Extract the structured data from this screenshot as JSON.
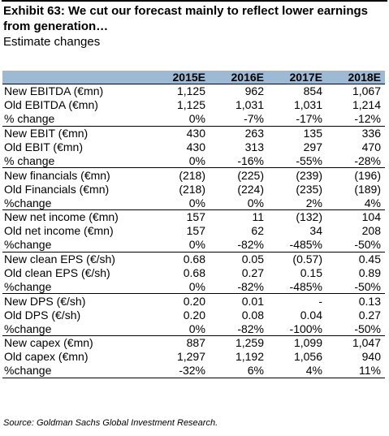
{
  "exhibit": {
    "title": "Exhibit 63: We cut our forecast mainly to reflect lower earnings from generation…",
    "subtitle": "Estimate changes"
  },
  "table": {
    "header": [
      "",
      "2015E",
      "2016E",
      "2017E",
      "2018E"
    ],
    "rows": [
      {
        "label": "New EBITDA (€mn)",
        "values": [
          "1,125",
          "962",
          "854",
          "1,067"
        ],
        "group_start": true
      },
      {
        "label": "Old EBITDA (€mn)",
        "values": [
          "1,125",
          "1,031",
          "1,031",
          "1,214"
        ]
      },
      {
        "label": "% change",
        "values": [
          "0%",
          "-7%",
          "-17%",
          "-12%"
        ]
      },
      {
        "label": "New EBIT (€mn)",
        "values": [
          "430",
          "263",
          "135",
          "336"
        ],
        "group_start": true
      },
      {
        "label": "Old EBIT (€mn)",
        "values": [
          "430",
          "313",
          "297",
          "470"
        ]
      },
      {
        "label": "% change",
        "values": [
          "0%",
          "-16%",
          "-55%",
          "-28%"
        ]
      },
      {
        "label": "New financials (€mn)",
        "values": [
          "(218)",
          "(225)",
          "(239)",
          "(196)"
        ],
        "group_start": true
      },
      {
        "label": "Old Financials (€mn)",
        "values": [
          "(218)",
          "(224)",
          "(235)",
          "(189)"
        ]
      },
      {
        "label": "%change",
        "values": [
          "0%",
          "0%",
          "2%",
          "4%"
        ]
      },
      {
        "label": "New net income (€mn)",
        "values": [
          "157",
          "11",
          "(132)",
          "104"
        ],
        "group_start": true
      },
      {
        "label": "Old net income (€mn)",
        "values": [
          "157",
          "62",
          "34",
          "208"
        ]
      },
      {
        "label": "%change",
        "values": [
          "0%",
          "-82%",
          "-485%",
          "-50%"
        ]
      },
      {
        "label": "New clean EPS (€/sh)",
        "values": [
          "0.68",
          "0.05",
          "(0.57)",
          "0.45"
        ],
        "group_start": true
      },
      {
        "label": "Old clean EPS (€/sh)",
        "values": [
          "0.68",
          "0.27",
          "0.15",
          "0.89"
        ]
      },
      {
        "label": "%change",
        "values": [
          "0%",
          "-82%",
          "-485%",
          "-50%"
        ]
      },
      {
        "label": "New DPS (€/sh)",
        "values": [
          "0.20",
          "0.01",
          "-",
          "0.13"
        ],
        "group_start": true
      },
      {
        "label": "Old DPS (€/sh)",
        "values": [
          "0.20",
          "0.08",
          "0.04",
          "0.27"
        ]
      },
      {
        "label": "%change",
        "values": [
          "0%",
          "-82%",
          "-100%",
          "-50%"
        ]
      },
      {
        "label": "New capex (€mn)",
        "values": [
          "887",
          "1,259",
          "1,099",
          "1,047"
        ],
        "group_start": true
      },
      {
        "label": "Old capex (€mn)",
        "values": [
          "1,297",
          "1,192",
          "1,056",
          "940"
        ]
      },
      {
        "label": "%change",
        "values": [
          "-32%",
          "6%",
          "4%",
          "11%"
        ]
      }
    ]
  },
  "source": "Source: Goldman Sachs Global Investment Research.",
  "colors": {
    "header_fill": "#9db9d4",
    "text": "#000000"
  }
}
